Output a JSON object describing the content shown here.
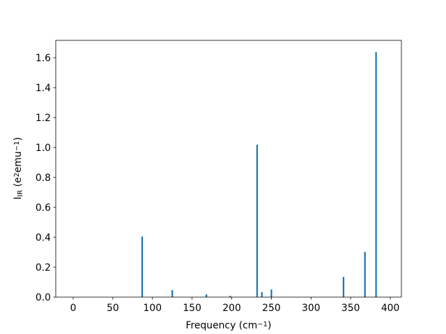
{
  "chart_data": {
    "type": "bar",
    "xlabel": [
      {
        "text": "Frequency (cm",
        "shift": "base"
      },
      {
        "text": "−1",
        "shift": "super"
      },
      {
        "text": ")",
        "shift": "base"
      }
    ],
    "ylabel": [
      {
        "text": "I",
        "shift": "base"
      },
      {
        "text": "IR",
        "shift": "sub"
      },
      {
        "text": " (e",
        "shift": "base"
      },
      {
        "text": "2",
        "shift": "super"
      },
      {
        "text": "emu",
        "shift": "base"
      },
      {
        "text": "−1",
        "shift": "super"
      },
      {
        "text": ")",
        "shift": "base"
      }
    ],
    "x": [
      87,
      125,
      168,
      198,
      232,
      238,
      250,
      341,
      368,
      382
    ],
    "values": [
      0.405,
      0.047,
      0.019,
      0.009,
      1.019,
      0.033,
      0.051,
      0.135,
      0.302,
      1.637
    ],
    "bar_width": 2,
    "color": "#1f77b4",
    "xlim": [
      -22,
      414
    ],
    "ylim": [
      0,
      1.716
    ],
    "xticks": [
      0,
      50,
      100,
      150,
      200,
      250,
      300,
      350,
      400
    ],
    "yticks": [
      {
        "value": 0,
        "label": "0.0"
      },
      0.2,
      0.4,
      0.6,
      0.8,
      {
        "value": 1,
        "label": "1.0"
      },
      1.2,
      1.4,
      1.6
    ],
    "grid": false
  }
}
